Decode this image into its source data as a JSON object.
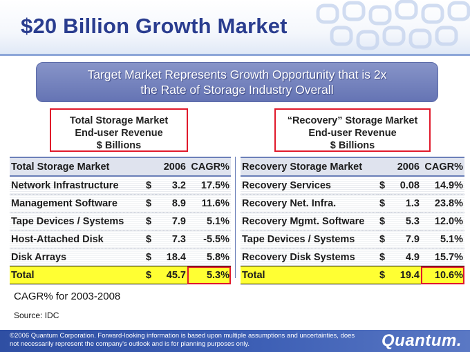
{
  "slide": {
    "title": "$20 Billion Growth Market",
    "banner_line1": "Target Market Represents Growth Opportunity that is 2x",
    "banner_line2": "the Rate of Storage Industry Overall"
  },
  "left_box": {
    "line1": "Total Storage Market",
    "line2": "End-user Revenue",
    "line3": "$ Billions"
  },
  "right_box": {
    "line1": "“Recovery” Storage Market",
    "line2": "End-user Revenue",
    "line3": "$ Billions"
  },
  "left_table": {
    "header": {
      "label": "Total Storage Market",
      "year": "2006",
      "cagr": "CAGR%"
    },
    "rows": [
      {
        "label": "Network Infrastructure",
        "cur": "$",
        "value": "3.2",
        "cagr": "17.5%"
      },
      {
        "label": "Management Software",
        "cur": "$",
        "value": "8.9",
        "cagr": "11.6%"
      },
      {
        "label": "Tape Devices / Systems",
        "cur": "$",
        "value": "7.9",
        "cagr": "5.1%"
      },
      {
        "label": "Host-Attached Disk",
        "cur": "$",
        "value": "7.3",
        "cagr": "-5.5%"
      },
      {
        "label": "Disk Arrays",
        "cur": "$",
        "value": "18.4",
        "cagr": "5.8%"
      }
    ],
    "total": {
      "label": "Total",
      "cur": "$",
      "value": "45.7",
      "cagr": "5.3%"
    }
  },
  "right_table": {
    "header": {
      "label": "Recovery Storage Market",
      "year": "2006",
      "cagr": "CAGR%"
    },
    "rows": [
      {
        "label": "Recovery Services",
        "cur": "$",
        "value": "0.08",
        "cagr": "14.9%"
      },
      {
        "label": "Recovery Net. Infra.",
        "cur": "$",
        "value": "1.3",
        "cagr": "23.8%"
      },
      {
        "label": "Recovery Mgmt. Software",
        "cur": "$",
        "value": "5.3",
        "cagr": "12.0%"
      },
      {
        "label": "Tape Devices / Systems",
        "cur": "$",
        "value": "7.9",
        "cagr": "5.1%"
      },
      {
        "label": "Recovery Disk Systems",
        "cur": "$",
        "value": "4.9",
        "cagr": "15.7%"
      }
    ],
    "total": {
      "label": "Total",
      "cur": "$",
      "value": "19.4",
      "cagr": "10.6%"
    }
  },
  "notes": {
    "cagr_note": "CAGR% for 2003-2008",
    "source": "Source: IDC"
  },
  "footer": {
    "line1": "©2006 Quantum Corporation. Forward-looking information is based upon multiple assumptions and uncertainties, does",
    "line2": "not necessarily represent the company's outlook and is for planning purposes only.",
    "logo": "Quantum."
  },
  "colors": {
    "title": "#2a3d8f",
    "highlight": "#ffff33",
    "outline": "#e0192b"
  }
}
